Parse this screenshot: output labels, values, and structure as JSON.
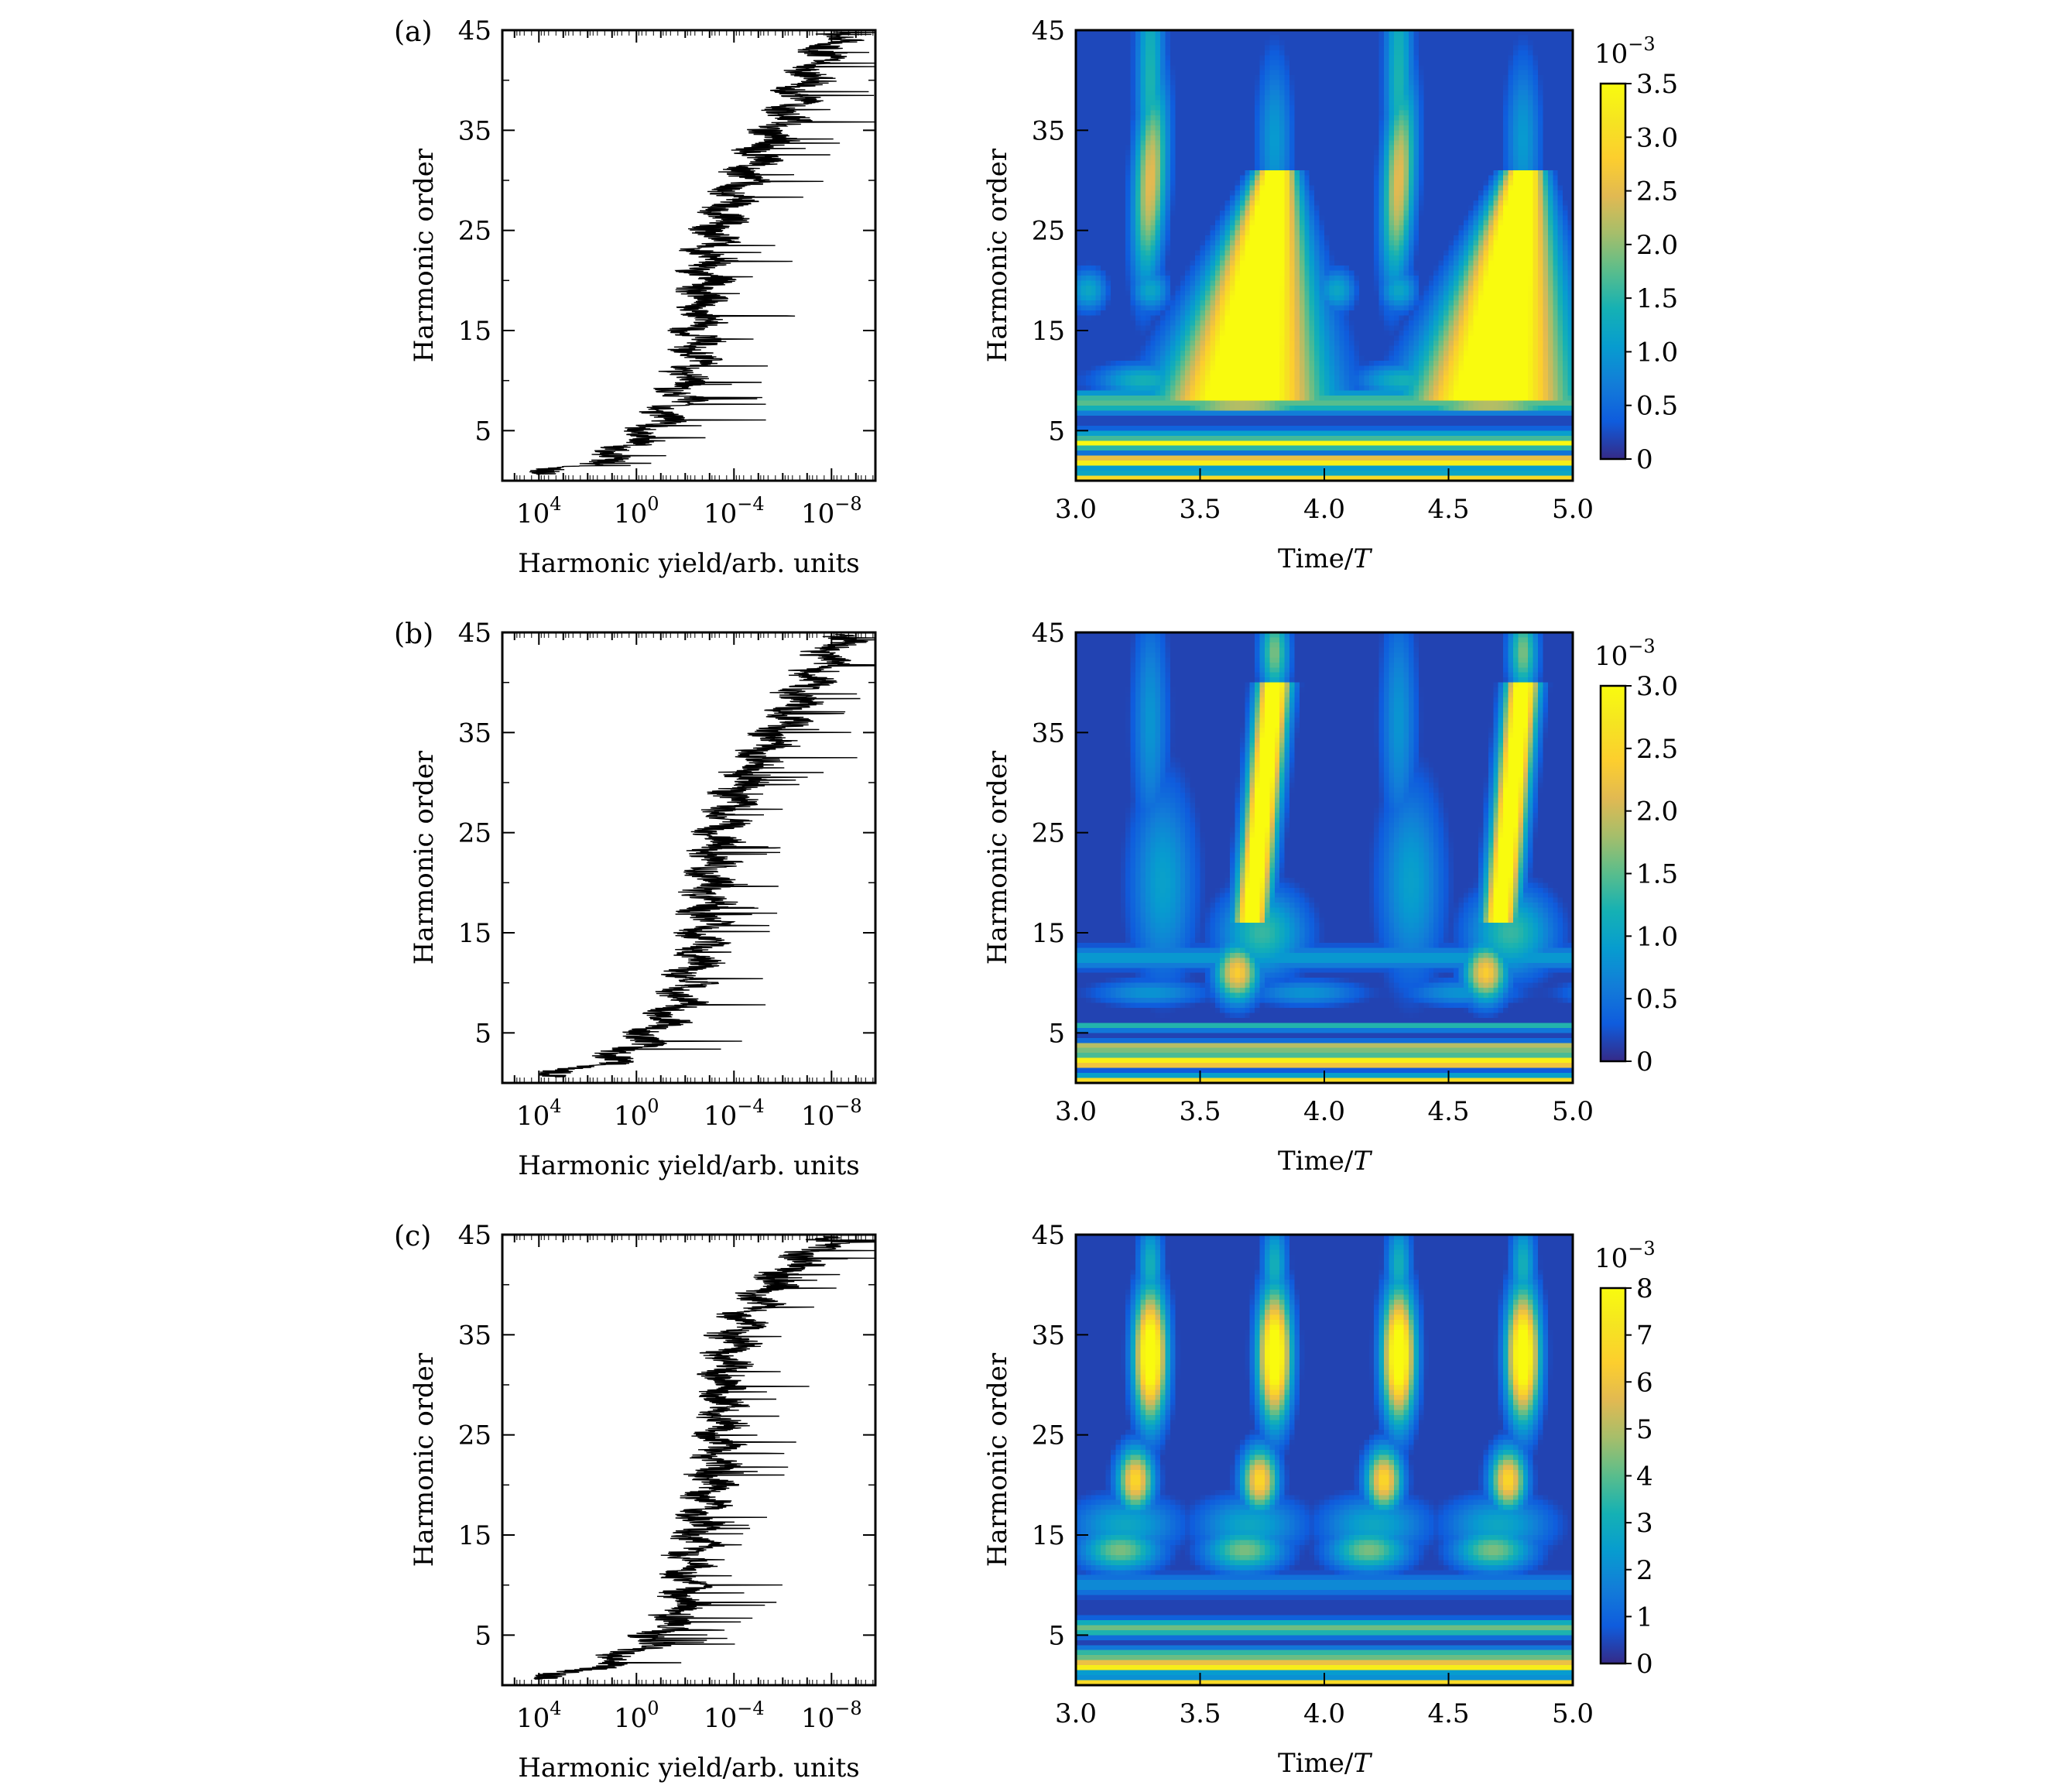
{
  "panels": [
    {
      "label": "(a)",
      "spectrum": {
        "xlabel": "Harmonic yield/arb. units",
        "ylabel": "Harmonic order",
        "xticks": [
          {
            "exp": 4,
            "text": "10",
            "sup": "4"
          },
          {
            "exp": 0,
            "text": "10",
            "sup": "0"
          },
          {
            "exp": -4,
            "text": "10",
            "sup": "−4"
          },
          {
            "exp": -8,
            "text": "10",
            "sup": "−8"
          }
        ],
        "yticks": [
          "5",
          "15",
          "25",
          "35",
          "45"
        ]
      },
      "tf": {
        "xlabel": "Time/",
        "xlabel_italic": "T",
        "ylabel": "Harmonic order",
        "xticks": [
          "3.0",
          "3.5",
          "4.0",
          "4.5",
          "5.0"
        ],
        "yticks": [
          "5",
          "15",
          "25",
          "35",
          "45"
        ],
        "colorbar": {
          "exponent_base": "10",
          "exponent": "−3",
          "ticks": [
            "0",
            "0.5",
            "1.0",
            "1.5",
            "2.0",
            "2.5",
            "3.0",
            "3.5"
          ],
          "max": 3.5
        }
      }
    },
    {
      "label": "(b)",
      "spectrum": {
        "xlabel": "Harmonic yield/arb. units",
        "ylabel": "Harmonic order",
        "xticks": [
          {
            "exp": 4,
            "text": "10",
            "sup": "4"
          },
          {
            "exp": 0,
            "text": "10",
            "sup": "0"
          },
          {
            "exp": -4,
            "text": "10",
            "sup": "−4"
          },
          {
            "exp": -8,
            "text": "10",
            "sup": "−8"
          }
        ],
        "yticks": [
          "5",
          "15",
          "25",
          "35",
          "45"
        ]
      },
      "tf": {
        "xlabel": "Time/",
        "xlabel_italic": "T",
        "ylabel": "Harmonic order",
        "xticks": [
          "3.0",
          "3.5",
          "4.0",
          "4.5",
          "5.0"
        ],
        "yticks": [
          "5",
          "15",
          "25",
          "35",
          "45"
        ],
        "colorbar": {
          "exponent_base": "10",
          "exponent": "−3",
          "ticks": [
            "0",
            "0.5",
            "1.0",
            "1.5",
            "2.0",
            "2.5",
            "3.0"
          ],
          "max": 3.0
        }
      }
    },
    {
      "label": "(c)",
      "spectrum": {
        "xlabel": "Harmonic yield/arb. units",
        "ylabel": "Harmonic order",
        "xticks": [
          {
            "exp": 4,
            "text": "10",
            "sup": "4"
          },
          {
            "exp": 0,
            "text": "10",
            "sup": "0"
          },
          {
            "exp": -4,
            "text": "10",
            "sup": "−4"
          },
          {
            "exp": -8,
            "text": "10",
            "sup": "−8"
          }
        ],
        "yticks": [
          "5",
          "15",
          "25",
          "35",
          "45"
        ]
      },
      "tf": {
        "xlabel": "Time/",
        "xlabel_italic": "T",
        "ylabel": "Harmonic order",
        "xticks": [
          "3.0",
          "3.5",
          "4.0",
          "4.5",
          "5.0"
        ],
        "yticks": [
          "5",
          "15",
          "25",
          "35",
          "45"
        ],
        "colorbar": {
          "exponent_base": "10",
          "exponent": "−3",
          "ticks": [
            "0",
            "1",
            "2",
            "3",
            "4",
            "5",
            "6",
            "7",
            "8"
          ],
          "max": 8
        }
      }
    }
  ],
  "chart_data": [
    {
      "type": "line",
      "panel": "(a) harmonic spectrum",
      "xlabel": "Harmonic yield/arb. units",
      "ylabel": "Harmonic order",
      "x_scale": "log",
      "x_reversed": true,
      "xlim": [
        300000.0,
        1e-10
      ],
      "ylim": [
        0,
        45
      ],
      "series": [
        {
          "x": [
            10000.0,
            10.0,
            0.1,
            0.01,
            0.001,
            0.001,
            1e-05,
            1e-07,
            1e-09
          ],
          "y": [
            0.5,
            3,
            5,
            10,
            15,
            20,
            25,
            35,
            45
          ]
        }
      ]
    },
    {
      "type": "heatmap",
      "panel": "(a) time-frequency",
      "xlabel": "Time/T",
      "ylabel": "Harmonic order",
      "xlim": [
        3.0,
        5.0
      ],
      "ylim": [
        0,
        45
      ],
      "colorbar_label": "10−3",
      "zlim": [
        0,
        3.5
      ],
      "colormap": "parula",
      "features": {
        "short_bursts_t": [
          3.3,
          4.3
        ],
        "short_burst_max_order": 45,
        "long_bursts_t": [
          3.8,
          4.8
        ],
        "long_burst_max_order": 30
      }
    },
    {
      "type": "line",
      "panel": "(b) harmonic spectrum",
      "xlabel": "Harmonic yield/arb. units",
      "ylabel": "Harmonic order",
      "x_scale": "log",
      "x_reversed": true,
      "xlim": [
        300000.0,
        1e-10
      ],
      "ylim": [
        0,
        45
      ],
      "series": [
        {
          "x": [
            10000.0,
            10.0,
            0.1,
            0.01,
            0.001,
            0.0001,
            1e-05,
            1e-07,
            1e-09
          ],
          "y": [
            0.5,
            3,
            5,
            10,
            15,
            20,
            25,
            35,
            45
          ]
        }
      ]
    },
    {
      "type": "heatmap",
      "panel": "(b) time-frequency",
      "xlabel": "Time/T",
      "ylabel": "Harmonic order",
      "xlim": [
        3.0,
        5.0
      ],
      "ylim": [
        0,
        45
      ],
      "colorbar_label": "10−3",
      "zlim": [
        0,
        3.0
      ],
      "colormap": "parula",
      "features": {
        "short_bursts_t": [
          3.3,
          4.3
        ],
        "long_bursts_t": [
          3.8,
          4.8
        ],
        "long_burst_max_order": 45
      }
    },
    {
      "type": "line",
      "panel": "(c) harmonic spectrum",
      "xlabel": "Harmonic yield/arb. units",
      "ylabel": "Harmonic order",
      "x_scale": "log",
      "x_reversed": true,
      "xlim": [
        300000.0,
        1e-10
      ],
      "ylim": [
        0,
        45
      ],
      "series": [
        {
          "x": [
            10000.0,
            10.0,
            0.1,
            0.001,
            0.001,
            0.001,
            0.0001,
            1e-05,
            1e-08
          ],
          "y": [
            0.5,
            3,
            5,
            10,
            15,
            20,
            25,
            35,
            45
          ]
        }
      ]
    },
    {
      "type": "heatmap",
      "panel": "(c) time-frequency",
      "xlabel": "Time/T",
      "ylabel": "Harmonic order",
      "xlim": [
        3.0,
        5.0
      ],
      "ylim": [
        0,
        45
      ],
      "colorbar_label": "10−3",
      "zlim": [
        0,
        8
      ],
      "colormap": "parula",
      "features": {
        "bursts_t": [
          3.3,
          3.8,
          4.3,
          4.8
        ],
        "burst_peak_order": [
          33,
          20
        ]
      }
    }
  ]
}
